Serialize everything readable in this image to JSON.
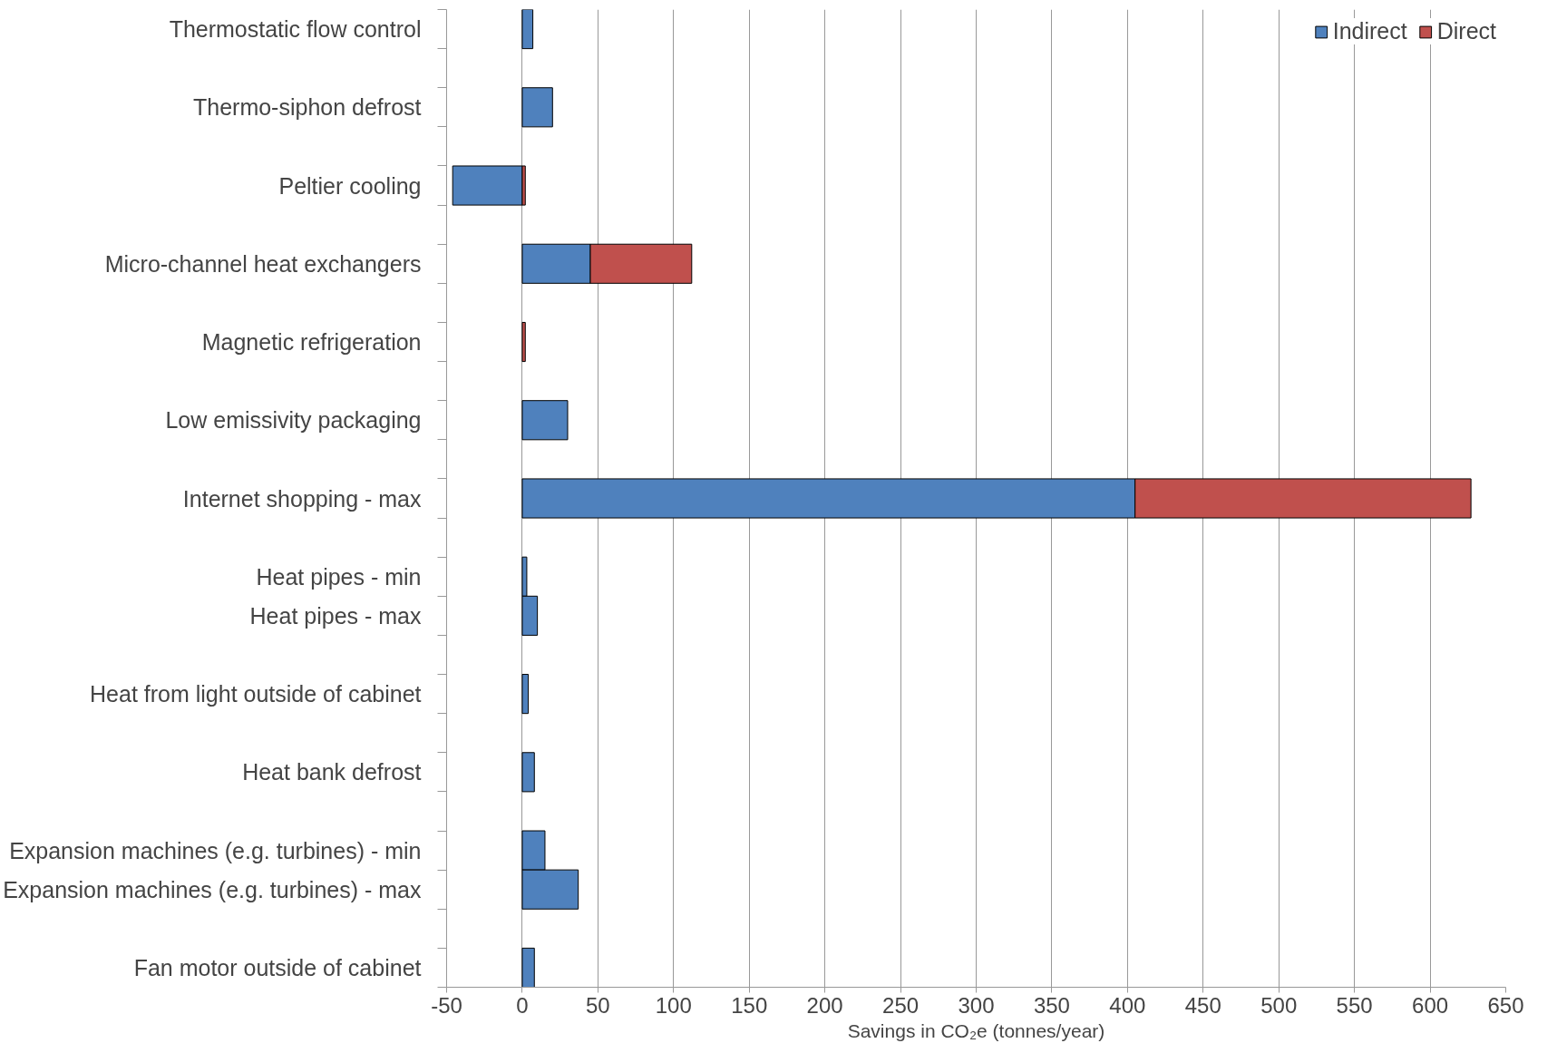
{
  "chart_data": {
    "type": "bar",
    "orientation": "horizontal",
    "stacked": true,
    "categories": [
      "Thermostatic flow control",
      null,
      "Thermo-siphon defrost",
      null,
      "Peltier cooling",
      null,
      "Micro-channel heat exchangers",
      null,
      "Magnetic refrigeration",
      null,
      "Low emissivity packaging",
      null,
      "Internet shopping - max",
      null,
      "Heat pipes - min",
      "Heat pipes - max",
      null,
      "Heat from light outside of cabinet",
      null,
      "Heat bank defrost",
      null,
      "Expansion machines (e.g. turbines) - min",
      "Expansion machines (e.g. turbines) - max",
      null,
      "Fan motor outside of cabinet"
    ],
    "series": [
      {
        "name": "Indirect",
        "color": "#4f81bd",
        "values": [
          7,
          null,
          20,
          null,
          -46,
          null,
          45,
          null,
          null,
          null,
          30,
          null,
          405,
          null,
          3,
          10,
          null,
          4,
          null,
          8,
          null,
          15,
          37,
          null,
          8
        ]
      },
      {
        "name": "Direct",
        "color": "#c0504d",
        "values": [
          null,
          null,
          null,
          null,
          2,
          null,
          67,
          null,
          2,
          null,
          null,
          null,
          222,
          null,
          null,
          null,
          null,
          null,
          null,
          null,
          null,
          null,
          null,
          null,
          null
        ]
      }
    ],
    "xlim": [
      -50,
      650
    ],
    "xticks": [
      -50,
      0,
      50,
      100,
      150,
      200,
      250,
      300,
      350,
      400,
      450,
      500,
      550,
      600,
      650
    ],
    "xlabel": "Savings in CO₂e (tonnes/year)",
    "grid": "x",
    "legend": "top right"
  }
}
